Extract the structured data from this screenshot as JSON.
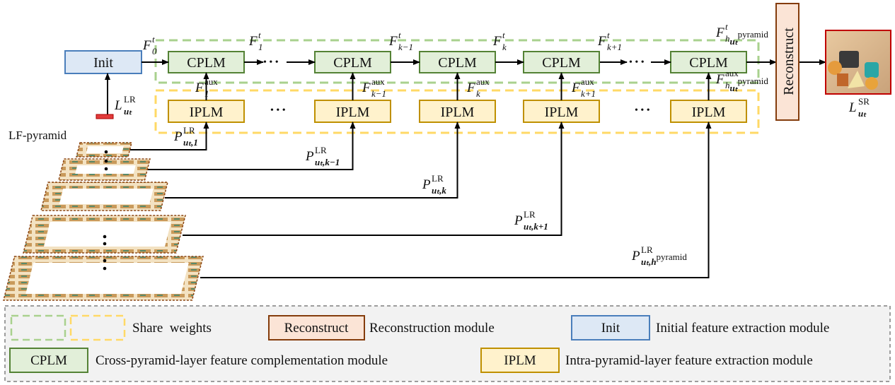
{
  "modules": {
    "init": "Init",
    "cplm": "CPLM",
    "iplm": "IPLM",
    "reconstruct": "Reconstruct",
    "dots": "• • •",
    "pyramid_label": "LF-pyramid"
  },
  "colors": {
    "init_fill": "#dde8f5",
    "init_border": "#4a7ebb",
    "cplm_fill": "#e2efd9",
    "cplm_border": "#548235",
    "iplm_fill": "#fff2cc",
    "iplm_border": "#bf9000",
    "reconstruct_fill": "#fbe4d6",
    "reconstruct_border": "#843c0c",
    "share_green": "#a9d18e",
    "share_yellow": "#ffd966",
    "output_border": "#c00000",
    "legend_fill": "#f2f2f2"
  },
  "features": [
    {
      "main": "F",
      "sub": "0",
      "sup": "t"
    },
    {
      "main": "F",
      "sub": "1",
      "sup": "t"
    },
    {
      "main": "F",
      "sub": "k−1",
      "sup": "t"
    },
    {
      "main": "F",
      "sub": "k",
      "sup": "t"
    },
    {
      "main": "F",
      "sub": "k+1",
      "sup": "t"
    },
    {
      "main": "F",
      "sub": "h",
      "subsub": "uₜ",
      "sup": "t",
      "subsup": "pyramid"
    }
  ],
  "aux": [
    {
      "main": "F",
      "sub": "1",
      "sup": "aux"
    },
    {
      "main": "F",
      "sub": "k−1",
      "sup": "aux"
    },
    {
      "main": "F",
      "sub": "k",
      "sup": "aux"
    },
    {
      "main": "F",
      "sub": "k+1",
      "sup": "aux"
    },
    {
      "main": "F",
      "sub": "h",
      "subsub": "uₜ",
      "sup": "aux",
      "subsup": "pyramid"
    }
  ],
  "patches": [
    {
      "main": "P",
      "sub": "uₜ,1",
      "sup": "LR"
    },
    {
      "main": "P",
      "sub": "uₜ,k−1",
      "sup": "LR"
    },
    {
      "main": "P",
      "sub": "uₜ,k",
      "sup": "LR"
    },
    {
      "main": "P",
      "sub": "uₜ,k+1",
      "sup": "LR"
    },
    {
      "main": "P",
      "sub": "uₜ,h",
      "sup": "LR",
      "subsup": "pyramid"
    }
  ],
  "input": {
    "main": "L",
    "sub": "uₜ",
    "sup": "LR"
  },
  "output": {
    "main": "L",
    "sub": "uₜ",
    "sup": "SR"
  },
  "legend": {
    "share": "Share  weights",
    "reconstruct_box": "Reconstruct",
    "reconstruct_desc": "Reconstruction module",
    "init_box": "Init",
    "init_desc": "Initial feature extraction module",
    "cplm_box": "CPLM",
    "cplm_desc": "Cross-pyramid-layer feature complementation module",
    "iplm_box": "IPLM",
    "iplm_desc": "Intra-pyramid-layer feature extraction module"
  }
}
